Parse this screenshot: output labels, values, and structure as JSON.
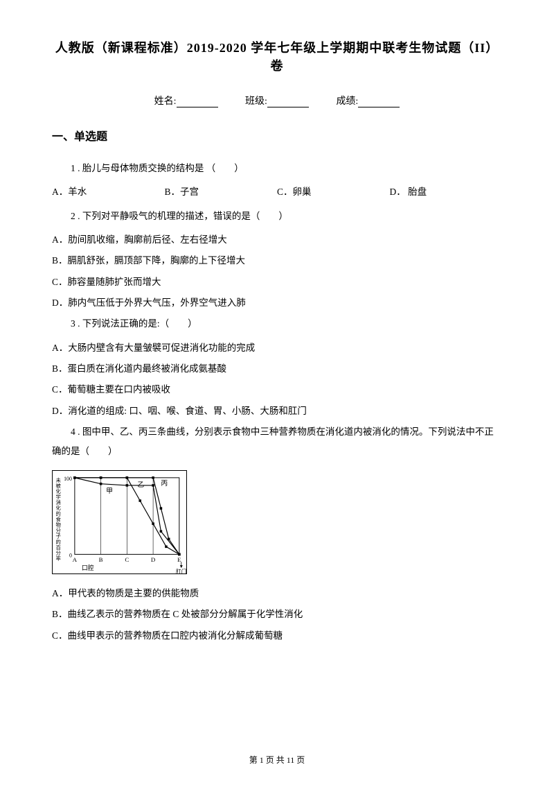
{
  "title": "人教版（新课程标准）2019-2020 学年七年级上学期期中联考生物试题（II）卷",
  "header": {
    "name_label": "姓名:",
    "class_label": "班级:",
    "score_label": "成绩:"
  },
  "section_heading": "一、单选题",
  "q1": {
    "text": "1 .  胎儿与母体物质交换的结构是 （　　）",
    "opts": {
      "a": "A．羊水",
      "b": "B．子宫",
      "c": "C．卵巢",
      "d": "D． 胎盘"
    }
  },
  "q2": {
    "text": "2 .  下列对平静吸气的机理的描述，错误的是（　　）",
    "a": "A．肋间肌收缩，胸廓前后径、左右径增大",
    "b": "B．膈肌舒张，膈顶部下降，胸廓的上下径增大",
    "c": "C．肺容量随肺扩张而增大",
    "d": "D．肺内气压低于外界大气压，外界空气进入肺"
  },
  "q3": {
    "text": "3 .  下列说法正确的是:（　　）",
    "a": "A．大肠内壁含有大量皱襞可促进消化功能的完成",
    "b": "B．蛋白质在消化道内最终被消化成氨基酸",
    "c": "C．葡萄糖主要在口内被吸收",
    "d": "D．消化道的组成: 口、咽、喉、食道、胃、小肠、大肠和肛门"
  },
  "q4": {
    "text": "4  .   图中甲、乙、丙三条曲线，分别表示食物中三种营养物质在消化道内被消化的情况。下列说法中不正确的是（　　）",
    "a": "A．甲代表的物质是主要的供能物质",
    "b": "B．曲线乙表示的营养物质在 C 处被部分分解属于化学性消化",
    "c": "C．曲线甲表示的营养物质在口腔内被消化分解成葡萄糖"
  },
  "chart": {
    "type": "line",
    "y_axis_label": "未被化学消化的食物分子的百分率",
    "y_max": 100,
    "y_min": 0,
    "x_labels": [
      "A",
      "B",
      "C",
      "D",
      "E"
    ],
    "x_section_labels": {
      "left": "口腔",
      "right": "肛门"
    },
    "series": [
      {
        "name": "甲",
        "color": "#000000",
        "points": [
          [
            0,
            100
          ],
          [
            1,
            92
          ],
          [
            2,
            90
          ],
          [
            3,
            90
          ],
          [
            3.3,
            30
          ],
          [
            4,
            0
          ]
        ]
      },
      {
        "name": "乙",
        "color": "#000000",
        "points": [
          [
            0,
            100
          ],
          [
            1,
            100
          ],
          [
            2,
            100
          ],
          [
            2.5,
            70
          ],
          [
            3,
            40
          ],
          [
            3.5,
            10
          ],
          [
            4,
            0
          ]
        ]
      },
      {
        "name": "丙",
        "color": "#000000",
        "points": [
          [
            0,
            100
          ],
          [
            1,
            100
          ],
          [
            2,
            100
          ],
          [
            3,
            100
          ],
          [
            3.3,
            60
          ],
          [
            3.6,
            20
          ],
          [
            4,
            0
          ]
        ]
      }
    ],
    "grid_color": "#000000",
    "background_color": "#ffffff",
    "marker": "square",
    "line_width": 1.2
  },
  "footer": {
    "prefix": "第 ",
    "current": "1",
    "middle": " 页 共 ",
    "total": "11",
    "suffix": " 页"
  }
}
